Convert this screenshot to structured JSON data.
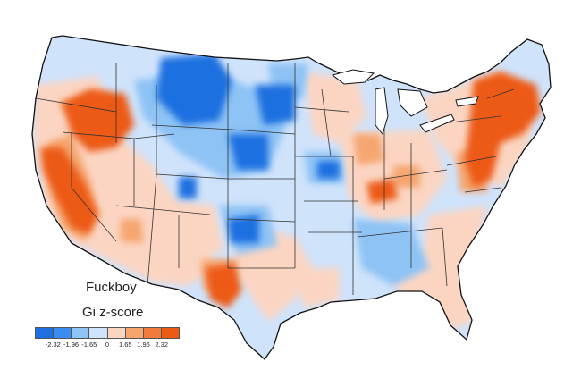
{
  "legend": {
    "title": "Fuckboy",
    "subtitle": "Gi z-score",
    "colors": [
      "#1f6fe0",
      "#3b8cf2",
      "#8ec3f5",
      "#cfe3fb",
      "#fbd5c2",
      "#f6a56f",
      "#f07b3d",
      "#ec5a14"
    ],
    "ticks": [
      "-2.32",
      "-1.96",
      "-1.65",
      "0",
      "1.65",
      "1.96",
      "2.32"
    ]
  },
  "map": {
    "land_color": "#cfe3fb",
    "border_color": "#333333",
    "hotspot_regions": [
      {
        "name": "Pacific Northwest / Oregon",
        "level": 2.32
      },
      {
        "name": "California",
        "level": 2.32
      },
      {
        "name": "Northeast / Mid-Atlantic",
        "level": 2.32
      },
      {
        "name": "West Texas",
        "level": 2.32
      },
      {
        "name": "Ohio Valley",
        "level": 1.96
      }
    ],
    "coldspot_regions": [
      {
        "name": "Montana / Wyoming",
        "level": -2.32
      },
      {
        "name": "Dakotas / Nebraska",
        "level": -2.32
      },
      {
        "name": "Oklahoma / Texas Panhandle",
        "level": -1.96
      },
      {
        "name": "Missouri",
        "level": -1.96
      },
      {
        "name": "Alabama / Georgia",
        "level": -1.65
      }
    ]
  }
}
